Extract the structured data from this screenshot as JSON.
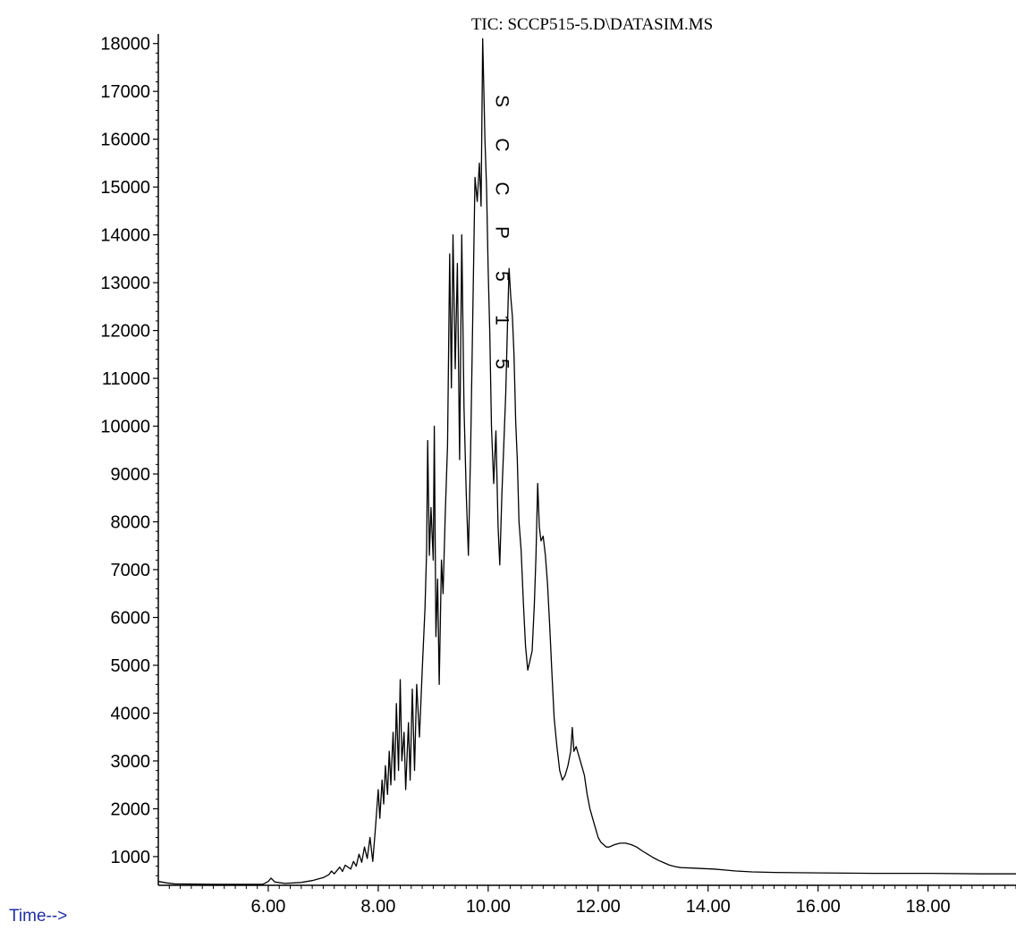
{
  "chart_data": {
    "type": "line",
    "title": "TIC: SCCP515-5.D\\DATASIM.MS",
    "xlabel": "Time-->",
    "ylabel": "",
    "xlim": [
      4.0,
      19.6
    ],
    "ylim": [
      400,
      18200
    ],
    "x_ticks": [
      "6.00",
      "8.00",
      "10.00",
      "12.00",
      "14.00",
      "16.00",
      "18.00"
    ],
    "y_ticks": [
      "1000",
      "2000",
      "3000",
      "4000",
      "5000",
      "6000",
      "7000",
      "8000",
      "9000",
      "10000",
      "11000",
      "12000",
      "13000",
      "14000",
      "15000",
      "16000",
      "17000",
      "18000"
    ],
    "peak_annotation": "SCCP515",
    "grid": false,
    "series": [
      {
        "color": "#000000",
        "points": [
          [
            4.0,
            480
          ],
          [
            4.15,
            450
          ],
          [
            4.3,
            430
          ],
          [
            5.0,
            420
          ],
          [
            5.9,
            420
          ],
          [
            6.0,
            480
          ],
          [
            6.05,
            550
          ],
          [
            6.12,
            470
          ],
          [
            6.3,
            440
          ],
          [
            6.6,
            460
          ],
          [
            6.8,
            500
          ],
          [
            7.0,
            560
          ],
          [
            7.1,
            620
          ],
          [
            7.15,
            700
          ],
          [
            7.2,
            640
          ],
          [
            7.3,
            780
          ],
          [
            7.35,
            690
          ],
          [
            7.4,
            820
          ],
          [
            7.5,
            740
          ],
          [
            7.55,
            900
          ],
          [
            7.6,
            800
          ],
          [
            7.65,
            1050
          ],
          [
            7.7,
            880
          ],
          [
            7.75,
            1200
          ],
          [
            7.8,
            960
          ],
          [
            7.85,
            1400
          ],
          [
            7.9,
            900
          ],
          [
            7.95,
            1600
          ],
          [
            8.0,
            2400
          ],
          [
            8.03,
            1800
          ],
          [
            8.07,
            2600
          ],
          [
            8.1,
            2100
          ],
          [
            8.13,
            2900
          ],
          [
            8.17,
            2300
          ],
          [
            8.2,
            3200
          ],
          [
            8.23,
            2500
          ],
          [
            8.27,
            3600
          ],
          [
            8.3,
            2600
          ],
          [
            8.33,
            4200
          ],
          [
            8.37,
            2800
          ],
          [
            8.4,
            4700
          ],
          [
            8.43,
            3000
          ],
          [
            8.47,
            3600
          ],
          [
            8.5,
            2400
          ],
          [
            8.55,
            3800
          ],
          [
            8.58,
            2600
          ],
          [
            8.62,
            4500
          ],
          [
            8.66,
            2800
          ],
          [
            8.7,
            4600
          ],
          [
            8.75,
            3500
          ],
          [
            8.8,
            4900
          ],
          [
            8.85,
            6200
          ],
          [
            8.88,
            7400
          ],
          [
            8.9,
            9700
          ],
          [
            8.93,
            7300
          ],
          [
            8.96,
            8300
          ],
          [
            9.0,
            7200
          ],
          [
            9.02,
            10000
          ],
          [
            9.05,
            5600
          ],
          [
            9.08,
            6800
          ],
          [
            9.11,
            4600
          ],
          [
            9.15,
            7200
          ],
          [
            9.18,
            6500
          ],
          [
            9.22,
            8200
          ],
          [
            9.26,
            9600
          ],
          [
            9.3,
            13600
          ],
          [
            9.33,
            10800
          ],
          [
            9.36,
            14000
          ],
          [
            9.4,
            11200
          ],
          [
            9.44,
            13400
          ],
          [
            9.48,
            9300
          ],
          [
            9.52,
            14000
          ],
          [
            9.56,
            10400
          ],
          [
            9.6,
            8600
          ],
          [
            9.64,
            7300
          ],
          [
            9.68,
            9500
          ],
          [
            9.72,
            12300
          ],
          [
            9.76,
            15200
          ],
          [
            9.8,
            14700
          ],
          [
            9.84,
            15500
          ],
          [
            9.87,
            14600
          ],
          [
            9.9,
            18100
          ],
          [
            9.92,
            17100
          ],
          [
            9.94,
            16000
          ],
          [
            9.97,
            15000
          ],
          [
            10.0,
            13300
          ],
          [
            10.03,
            11900
          ],
          [
            10.06,
            10000
          ],
          [
            10.1,
            8800
          ],
          [
            10.14,
            9900
          ],
          [
            10.18,
            7900
          ],
          [
            10.21,
            7100
          ],
          [
            10.25,
            8600
          ],
          [
            10.29,
            9800
          ],
          [
            10.32,
            10700
          ],
          [
            10.35,
            12100
          ],
          [
            10.38,
            13300
          ],
          [
            10.41,
            12700
          ],
          [
            10.44,
            12300
          ],
          [
            10.47,
            11500
          ],
          [
            10.5,
            10100
          ],
          [
            10.53,
            9300
          ],
          [
            10.56,
            8000
          ],
          [
            10.6,
            7400
          ],
          [
            10.64,
            6300
          ],
          [
            10.68,
            5400
          ],
          [
            10.72,
            4900
          ],
          [
            10.76,
            5100
          ],
          [
            10.8,
            5300
          ],
          [
            10.84,
            6300
          ],
          [
            10.87,
            7300
          ],
          [
            10.9,
            8800
          ],
          [
            10.93,
            7900
          ],
          [
            10.96,
            7600
          ],
          [
            11.0,
            7700
          ],
          [
            11.04,
            7300
          ],
          [
            11.08,
            6700
          ],
          [
            11.12,
            5800
          ],
          [
            11.16,
            4800
          ],
          [
            11.2,
            3900
          ],
          [
            11.25,
            3300
          ],
          [
            11.3,
            2800
          ],
          [
            11.35,
            2600
          ],
          [
            11.4,
            2700
          ],
          [
            11.45,
            2900
          ],
          [
            11.5,
            3200
          ],
          [
            11.53,
            3700
          ],
          [
            11.56,
            3200
          ],
          [
            11.6,
            3300
          ],
          [
            11.65,
            3100
          ],
          [
            11.7,
            2900
          ],
          [
            11.75,
            2700
          ],
          [
            11.8,
            2300
          ],
          [
            11.85,
            2000
          ],
          [
            11.9,
            1800
          ],
          [
            11.95,
            1600
          ],
          [
            12.0,
            1400
          ],
          [
            12.05,
            1300
          ],
          [
            12.1,
            1250
          ],
          [
            12.15,
            1200
          ],
          [
            12.2,
            1200
          ],
          [
            12.3,
            1250
          ],
          [
            12.4,
            1280
          ],
          [
            12.5,
            1280
          ],
          [
            12.6,
            1250
          ],
          [
            12.7,
            1200
          ],
          [
            12.8,
            1120
          ],
          [
            12.9,
            1050
          ],
          [
            13.0,
            980
          ],
          [
            13.1,
            920
          ],
          [
            13.2,
            870
          ],
          [
            13.3,
            820
          ],
          [
            13.4,
            790
          ],
          [
            13.5,
            770
          ],
          [
            13.7,
            760
          ],
          [
            13.9,
            750
          ],
          [
            14.1,
            740
          ],
          [
            14.3,
            720
          ],
          [
            14.5,
            700
          ],
          [
            14.8,
            680
          ],
          [
            15.2,
            670
          ],
          [
            16.0,
            660
          ],
          [
            17.0,
            650
          ],
          [
            18.0,
            650
          ],
          [
            19.0,
            640
          ],
          [
            19.6,
            640
          ]
        ]
      }
    ]
  }
}
